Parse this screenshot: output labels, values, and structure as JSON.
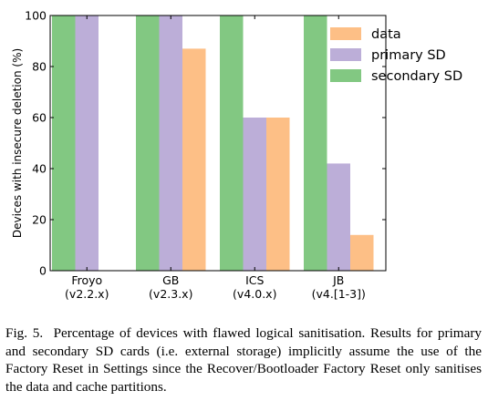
{
  "chart_data": {
    "type": "bar",
    "ylabel": "Devices with insecure deletion (%)",
    "ylim": [
      0,
      100
    ],
    "yticks": [
      0,
      20,
      40,
      60,
      80,
      100
    ],
    "grid": false,
    "legend_position": "top-right",
    "categories": [
      {
        "name": "Froyo",
        "version": "(v2.2.x)"
      },
      {
        "name": "GB",
        "version": "(v2.3.x)"
      },
      {
        "name": "ICS",
        "version": "(v4.0.x)"
      },
      {
        "name": "JB",
        "version": "(v4.[1-3])"
      }
    ],
    "series": [
      {
        "name": "secondary SD",
        "color": "#82c882",
        "values": [
          100,
          100,
          100,
          100
        ]
      },
      {
        "name": "primary SD",
        "color": "#bcaed8",
        "values": [
          100,
          100,
          60,
          42
        ]
      },
      {
        "name": "data",
        "color": "#fdbf86",
        "values": [
          0,
          87,
          60,
          14
        ]
      }
    ],
    "legend_order": [
      2,
      1,
      0
    ]
  },
  "caption": {
    "label": "Fig. 5.",
    "text": "Percentage of devices with flawed logical sanitisation. Results for primary and secondary SD cards (i.e. external storage) implicitly assume the use of the Factory Reset in Settings since the Recover/Bootloader Factory Reset only sanitises the data and cache partitions."
  }
}
